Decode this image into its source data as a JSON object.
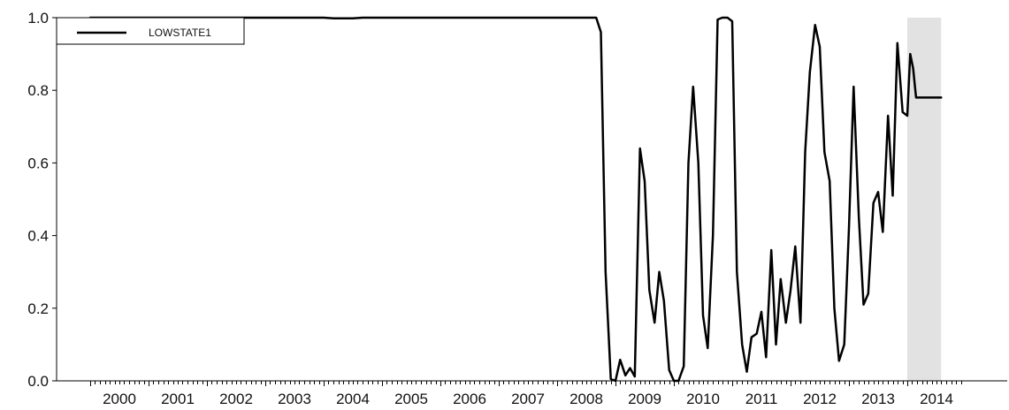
{
  "chart_data": {
    "type": "line",
    "title": "",
    "xlabel": "",
    "ylabel": "",
    "x_tick_labels": [
      "2000",
      "2001",
      "2002",
      "2003",
      "2004",
      "2005",
      "2006",
      "2007",
      "2008",
      "2009",
      "2010",
      "2011",
      "2012",
      "2013",
      "2014"
    ],
    "y_tick_labels": [
      "0.0",
      "0.2",
      "0.4",
      "0.6",
      "0.8",
      "1.0"
    ],
    "xlim": [
      2000.0,
      2014.95
    ],
    "ylim": [
      0.0,
      1.0
    ],
    "legend": {
      "position": "top-left",
      "entries": [
        "LOWSTATE1"
      ]
    },
    "shaded_region": {
      "x_start": 2014.0,
      "x_end": 2014.58,
      "color": "#e2e2e2"
    },
    "series": [
      {
        "name": "LOWSTATE1",
        "color": "#000000",
        "x": [
          2000.0,
          2004.0,
          2004.17,
          2004.5,
          2004.67,
          2008.0,
          2008.67,
          2008.75,
          2008.83,
          2008.92,
          2009.0,
          2009.08,
          2009.17,
          2009.25,
          2009.33,
          2009.42,
          2009.5,
          2009.58,
          2009.67,
          2009.75,
          2009.83,
          2009.92,
          2010.0,
          2010.08,
          2010.17,
          2010.25,
          2010.33,
          2010.42,
          2010.5,
          2010.58,
          2010.67,
          2010.75,
          2010.83,
          2010.92,
          2011.0,
          2011.08,
          2011.17,
          2011.25,
          2011.33,
          2011.42,
          2011.5,
          2011.58,
          2011.67,
          2011.75,
          2011.83,
          2011.92,
          2012.0,
          2012.08,
          2012.17,
          2012.25,
          2012.33,
          2012.42,
          2012.5,
          2012.58,
          2012.67,
          2012.75,
          2012.83,
          2012.92,
          2013.0,
          2013.08,
          2013.17,
          2013.25,
          2013.33,
          2013.42,
          2013.5,
          2013.58,
          2013.67,
          2013.75,
          2013.83,
          2013.92,
          2014.0,
          2014.05,
          2014.1,
          2014.15,
          2014.2,
          2014.25,
          2014.3,
          2014.35,
          2014.4,
          2014.45,
          2014.5,
          2014.58
        ],
        "values": [
          1.0,
          1.0,
          0.998,
          0.998,
          1.0,
          1.0,
          1.0,
          0.96,
          0.3,
          0.005,
          0.0,
          0.058,
          0.015,
          0.035,
          0.012,
          0.64,
          0.55,
          0.25,
          0.16,
          0.3,
          0.22,
          0.03,
          0.0,
          0.0,
          0.04,
          0.6,
          0.81,
          0.6,
          0.18,
          0.09,
          0.4,
          0.995,
          1.0,
          1.0,
          0.99,
          0.3,
          0.1,
          0.025,
          0.12,
          0.13,
          0.19,
          0.065,
          0.36,
          0.1,
          0.28,
          0.16,
          0.25,
          0.37,
          0.16,
          0.63,
          0.85,
          0.98,
          0.92,
          0.63,
          0.55,
          0.2,
          0.055,
          0.1,
          0.42,
          0.81,
          0.45,
          0.21,
          0.24,
          0.49,
          0.52,
          0.41,
          0.73,
          0.51,
          0.93,
          0.74,
          0.73,
          0.9,
          0.86,
          0.78,
          0.78,
          0.78,
          0.78,
          0.78,
          0.78,
          0.78,
          0.78,
          0.78
        ]
      }
    ]
  }
}
